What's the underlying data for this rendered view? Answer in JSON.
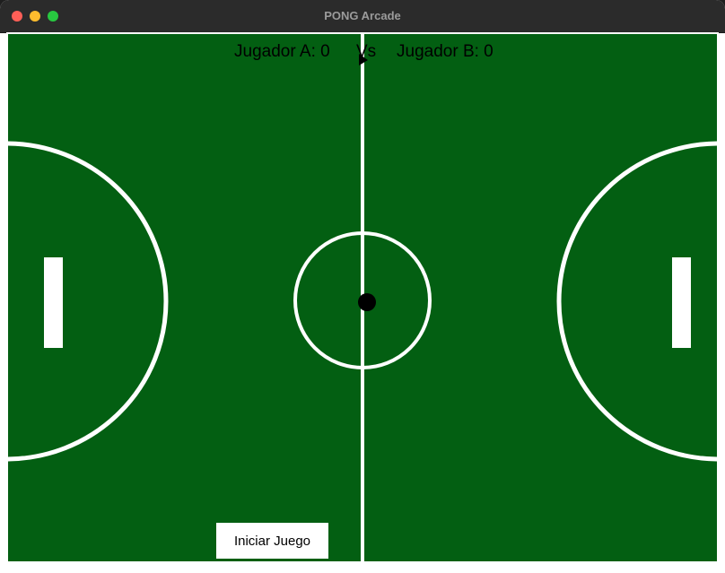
{
  "window": {
    "title": "PONG Arcade"
  },
  "scoreboard": {
    "player_a": "Jugador A: 0",
    "vs": "Vs",
    "player_b": "Jugador B: 0"
  },
  "controls": {
    "start_label": "Iniciar Juego"
  },
  "colors": {
    "field": "#035f12",
    "lines": "#ffffff",
    "ball": "#000000",
    "paddles": "#ffffff"
  }
}
